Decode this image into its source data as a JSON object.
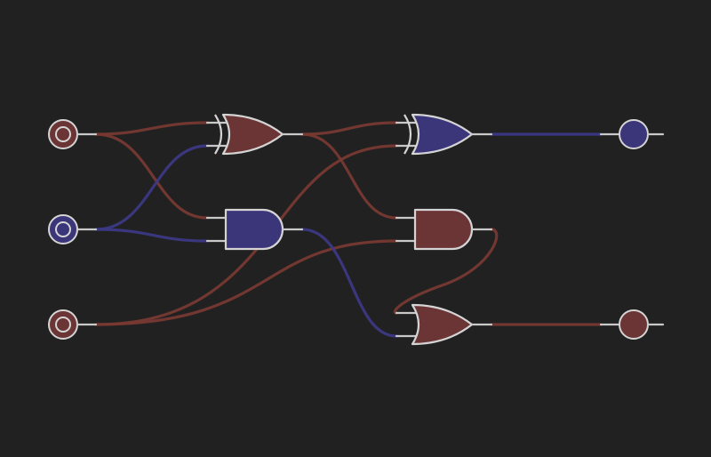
{
  "colors": {
    "background": "#212121",
    "high": "#6b3535",
    "low": "#3b3579",
    "wire_high": "#7a3a32",
    "wire_low": "#3d3a8a",
    "outline": "#d4d4d4"
  },
  "circuit": {
    "inputs": [
      {
        "id": "in-a",
        "state": "high"
      },
      {
        "id": "in-b",
        "state": "low"
      },
      {
        "id": "in-c",
        "state": "high"
      }
    ],
    "gates": [
      {
        "id": "xor-1",
        "type": "xor",
        "output_state": "high"
      },
      {
        "id": "and-1",
        "type": "and",
        "output_state": "low"
      },
      {
        "id": "xor-2",
        "type": "xor",
        "output_state": "low"
      },
      {
        "id": "and-2",
        "type": "and",
        "output_state": "high"
      },
      {
        "id": "or-1",
        "type": "or",
        "output_state": "high"
      }
    ],
    "outputs": [
      {
        "id": "out-sum",
        "state": "low"
      },
      {
        "id": "out-carry",
        "state": "high"
      }
    ]
  }
}
